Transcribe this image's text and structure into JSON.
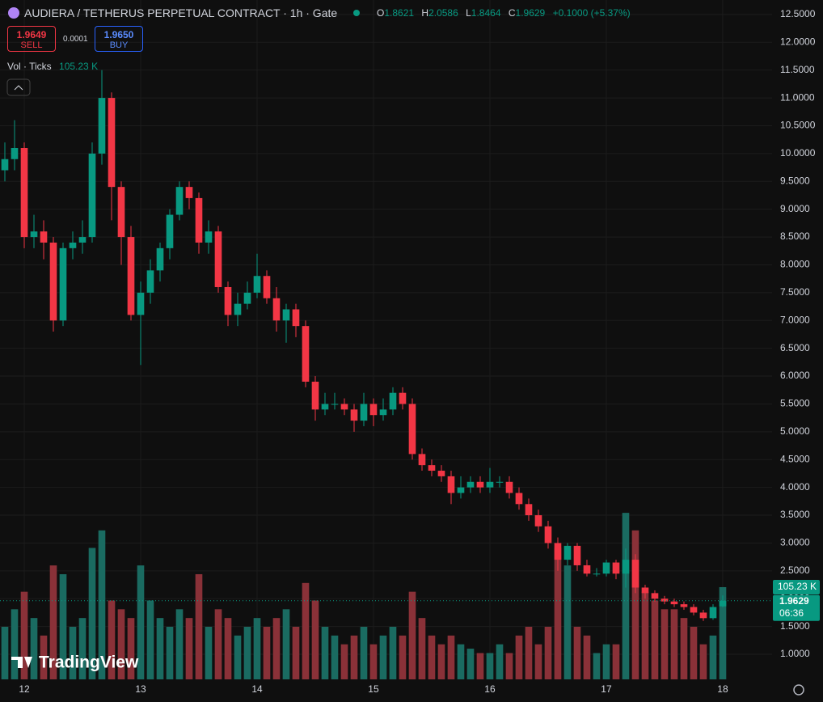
{
  "header": {
    "title": "AUDIERA / TETHERUS PERPETUAL CONTRACT · 1h · Gate",
    "o_label": "O",
    "o": "1.8621",
    "h_label": "H",
    "h": "2.0586",
    "l_label": "L",
    "l": "1.8464",
    "c_label": "C",
    "c": "1.9629",
    "change": "+0.1000 (+5.37%)"
  },
  "trade": {
    "sell_price": "1.9649",
    "sell": "SELL",
    "spread": "0.0001",
    "buy_price": "1.9650",
    "buy": "BUY"
  },
  "volume_legend": "Vol · Ticks",
  "countdown": "06:36",
  "watermark": "TradingView",
  "chart_data": {
    "type": "candlestick",
    "x": [
      -4,
      -2,
      0,
      2,
      4,
      6,
      8,
      10,
      12,
      14,
      16,
      18,
      20,
      22,
      24,
      26,
      28,
      30,
      32,
      34,
      36,
      38,
      40,
      42,
      44,
      46,
      48,
      50,
      52,
      54,
      56,
      58,
      60,
      62,
      64,
      66,
      68,
      70,
      72,
      74,
      76,
      78,
      80,
      82,
      84,
      86,
      88,
      90,
      92,
      94,
      96,
      98,
      100,
      102,
      104,
      106,
      108,
      110,
      112,
      114,
      116,
      118,
      120,
      122,
      124,
      126,
      128,
      130,
      132,
      134,
      136,
      138,
      140,
      142,
      144
    ],
    "open": [
      9.7,
      9.9,
      10.1,
      8.5,
      8.6,
      8.4,
      7.0,
      8.3,
      8.4,
      8.5,
      10.0,
      11.0,
      9.4,
      8.5,
      7.1,
      7.5,
      7.9,
      8.3,
      8.9,
      9.4,
      9.2,
      8.4,
      8.6,
      7.6,
      7.1,
      7.3,
      7.5,
      7.8,
      7.4,
      7.0,
      7.2,
      6.9,
      5.9,
      5.4,
      5.5,
      5.5,
      5.4,
      5.2,
      5.5,
      5.3,
      5.4,
      5.7,
      5.5,
      4.6,
      4.4,
      4.3,
      4.2,
      3.9,
      4.0,
      4.1,
      4.0,
      4.1,
      4.1,
      3.9,
      3.7,
      3.5,
      3.3,
      3.0,
      2.7,
      2.95,
      2.6,
      2.45,
      2.45,
      2.65,
      2.45,
      2.7,
      2.2,
      2.1,
      2.0,
      1.95,
      1.9,
      1.85,
      1.75,
      1.65,
      1.8621
    ],
    "high": [
      10.2,
      10.6,
      10.2,
      8.9,
      8.8,
      8.5,
      8.4,
      8.6,
      8.8,
      10.2,
      11.5,
      11.1,
      9.5,
      8.7,
      7.7,
      8.1,
      8.4,
      9.0,
      9.5,
      9.5,
      9.3,
      8.8,
      8.7,
      7.7,
      7.5,
      7.7,
      8.2,
      7.9,
      7.6,
      7.3,
      7.3,
      7.0,
      6.0,
      5.7,
      5.7,
      5.6,
      5.5,
      5.7,
      5.6,
      5.6,
      5.8,
      5.8,
      5.6,
      4.7,
      4.5,
      4.4,
      4.3,
      4.2,
      4.2,
      4.2,
      4.35,
      4.2,
      4.2,
      4.0,
      3.8,
      3.6,
      3.4,
      3.1,
      3.0,
      3.0,
      2.7,
      2.55,
      2.7,
      2.7,
      2.9,
      2.8,
      2.25,
      2.15,
      2.05,
      2.0,
      1.95,
      1.9,
      1.8,
      1.9,
      2.0586
    ],
    "low": [
      9.5,
      9.7,
      8.3,
      8.3,
      8.1,
      6.8,
      6.9,
      8.1,
      8.2,
      8.4,
      9.8,
      8.8,
      8.0,
      7.0,
      6.2,
      7.3,
      7.7,
      8.1,
      8.8,
      9.0,
      8.2,
      8.2,
      7.5,
      6.9,
      6.9,
      7.2,
      7.4,
      7.3,
      6.8,
      6.6,
      6.7,
      5.8,
      5.2,
      5.3,
      5.4,
      5.3,
      5.0,
      5.1,
      5.1,
      5.2,
      5.3,
      5.4,
      4.5,
      4.3,
      4.2,
      4.1,
      3.7,
      3.8,
      3.9,
      3.9,
      3.9,
      4.0,
      3.8,
      3.6,
      3.4,
      3.2,
      2.9,
      2.5,
      2.6,
      2.5,
      2.4,
      2.4,
      2.4,
      2.35,
      2.2,
      2.1,
      2.0,
      1.95,
      1.9,
      1.85,
      1.8,
      1.7,
      1.6,
      1.62,
      1.8464
    ],
    "close": [
      9.9,
      10.1,
      8.5,
      8.6,
      8.4,
      7.0,
      8.3,
      8.4,
      8.5,
      10.0,
      11.0,
      9.4,
      8.5,
      7.1,
      7.5,
      7.9,
      8.3,
      8.9,
      9.4,
      9.2,
      8.4,
      8.6,
      7.6,
      7.1,
      7.3,
      7.5,
      7.8,
      7.4,
      7.0,
      7.2,
      6.9,
      5.9,
      5.4,
      5.5,
      5.5,
      5.4,
      5.2,
      5.5,
      5.3,
      5.4,
      5.7,
      5.5,
      4.6,
      4.4,
      4.3,
      4.2,
      3.9,
      4.0,
      4.1,
      4.0,
      4.1,
      4.1,
      3.9,
      3.7,
      3.5,
      3.3,
      3.0,
      2.7,
      2.95,
      2.6,
      2.45,
      2.45,
      2.65,
      2.45,
      2.7,
      2.2,
      2.1,
      2.0,
      1.95,
      1.9,
      1.85,
      1.75,
      1.65,
      1.85,
      1.9629
    ],
    "volume": {
      "name": "Vol",
      "axis": "y2",
      "values": [
        60,
        80,
        100,
        70,
        50,
        130,
        120,
        60,
        70,
        150,
        170,
        90,
        80,
        70,
        130,
        90,
        70,
        60,
        80,
        70,
        120,
        60,
        80,
        70,
        50,
        60,
        70,
        60,
        70,
        80,
        60,
        110,
        90,
        60,
        50,
        40,
        50,
        60,
        40,
        50,
        60,
        50,
        100,
        70,
        50,
        40,
        50,
        40,
        35,
        30,
        30,
        40,
        30,
        50,
        60,
        40,
        60,
        150,
        130,
        60,
        50,
        30,
        40,
        40,
        190,
        170,
        100,
        90,
        80,
        80,
        70,
        60,
        40,
        50,
        105.23
      ]
    },
    "last_volume_label": "105.23 K",
    "up_color": "#089981",
    "down_color": "#f23645",
    "volume_up_color": "#1a6b61",
    "volume_down_color": "#8a3138",
    "xlim": [
      -5,
      154.17
    ],
    "xticks": [
      {
        "value": 0,
        "label": "12"
      },
      {
        "value": 24,
        "label": "13"
      },
      {
        "value": 48,
        "label": "14"
      },
      {
        "value": 72,
        "label": "15"
      },
      {
        "value": 96,
        "label": "16"
      },
      {
        "value": 120,
        "label": "17"
      },
      {
        "value": 144,
        "label": "18"
      }
    ],
    "ylim": [
      0.55,
      12.76
    ],
    "yticks": [
      {
        "value": 1.0,
        "label": "1.0000"
      },
      {
        "value": 1.5,
        "label": "1.5000"
      },
      {
        "value": 2.0,
        "label": "2.0000"
      },
      {
        "value": 2.5,
        "label": "2.5000"
      },
      {
        "value": 3.0,
        "label": "3.0000"
      },
      {
        "value": 3.5,
        "label": "3.5000"
      },
      {
        "value": 4.0,
        "label": "4.0000"
      },
      {
        "value": 4.5,
        "label": "4.5000"
      },
      {
        "value": 5.0,
        "label": "5.0000"
      },
      {
        "value": 5.5,
        "label": "5.5000"
      },
      {
        "value": 6.0,
        "label": "6.0000"
      },
      {
        "value": 6.5,
        "label": "6.5000"
      },
      {
        "value": 7.0,
        "label": "7.0000"
      },
      {
        "value": 7.5,
        "label": "7.5000"
      },
      {
        "value": 8.0,
        "label": "8.0000"
      },
      {
        "value": 8.5,
        "label": "8.5000"
      },
      {
        "value": 9.0,
        "label": "9.0000"
      },
      {
        "value": 9.5,
        "label": "9.5000"
      },
      {
        "value": 10.0,
        "label": "10.0000"
      },
      {
        "value": 10.5,
        "label": "10.5000"
      },
      {
        "value": 11.0,
        "label": "11.0000"
      },
      {
        "value": 11.5,
        "label": "11.5000"
      },
      {
        "value": 12.0,
        "label": "12.0000"
      },
      {
        "value": 12.5,
        "label": "12.5000"
      }
    ],
    "y2lim": [
      0,
      400
    ],
    "grid": true
  }
}
